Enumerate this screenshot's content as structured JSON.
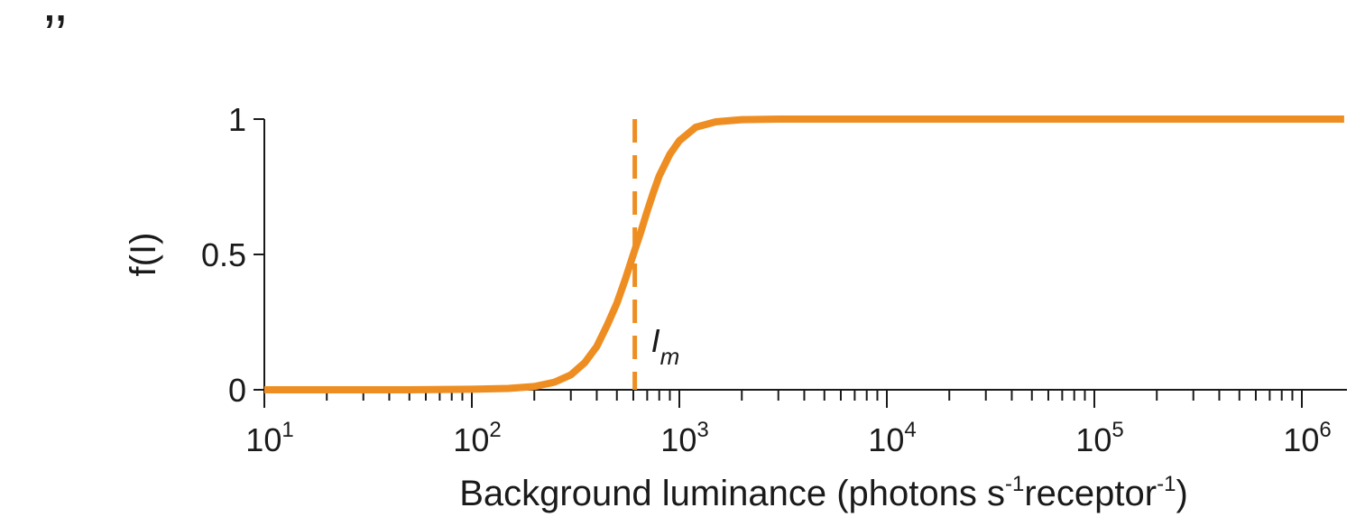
{
  "corner_mark": "’’",
  "chart_data": {
    "type": "line",
    "title": "",
    "xlabel": "Background luminance (photons s-1receptor-1)",
    "xlabel_parts": {
      "pre": "Background luminance (photons s",
      "sup1": "-1",
      "mid": "receptor",
      "sup2": "-1",
      "post": ")"
    },
    "ylabel": "f(I)",
    "xscale": "log",
    "xlim": [
      10,
      1600000
    ],
    "ylim": [
      0,
      1
    ],
    "x_ticks": [
      {
        "value": 10,
        "base": "10",
        "exp": "1"
      },
      {
        "value": 100,
        "base": "10",
        "exp": "2"
      },
      {
        "value": 1000,
        "base": "10",
        "exp": "3"
      },
      {
        "value": 10000,
        "base": "10",
        "exp": "4"
      },
      {
        "value": 100000,
        "base": "10",
        "exp": "5"
      },
      {
        "value": 1000000,
        "base": "10",
        "exp": "6"
      }
    ],
    "y_ticks": [
      {
        "value": 0,
        "label": "0"
      },
      {
        "value": 0.5,
        "label": "0.5"
      },
      {
        "value": 1,
        "label": "1"
      }
    ],
    "grid": false,
    "series": [
      {
        "color": "#EE8E22",
        "x": [
          10,
          50,
          100,
          150,
          200,
          250,
          300,
          350,
          400,
          450,
          500,
          550,
          600,
          650,
          700,
          750,
          800,
          900,
          1000,
          1200,
          1500,
          2000,
          3000,
          10000,
          100000,
          1600000
        ],
        "y": [
          0,
          0,
          0.002,
          0.005,
          0.012,
          0.028,
          0.055,
          0.1,
          0.16,
          0.24,
          0.32,
          0.41,
          0.5,
          0.58,
          0.66,
          0.73,
          0.79,
          0.87,
          0.92,
          0.97,
          0.99,
          0.998,
          1,
          1,
          1,
          1
        ]
      }
    ],
    "annotations": [
      {
        "type": "vline",
        "x": 610,
        "style": "dashed",
        "color": "#EE8E22",
        "label": "I",
        "label_sub": "m"
      }
    ]
  }
}
